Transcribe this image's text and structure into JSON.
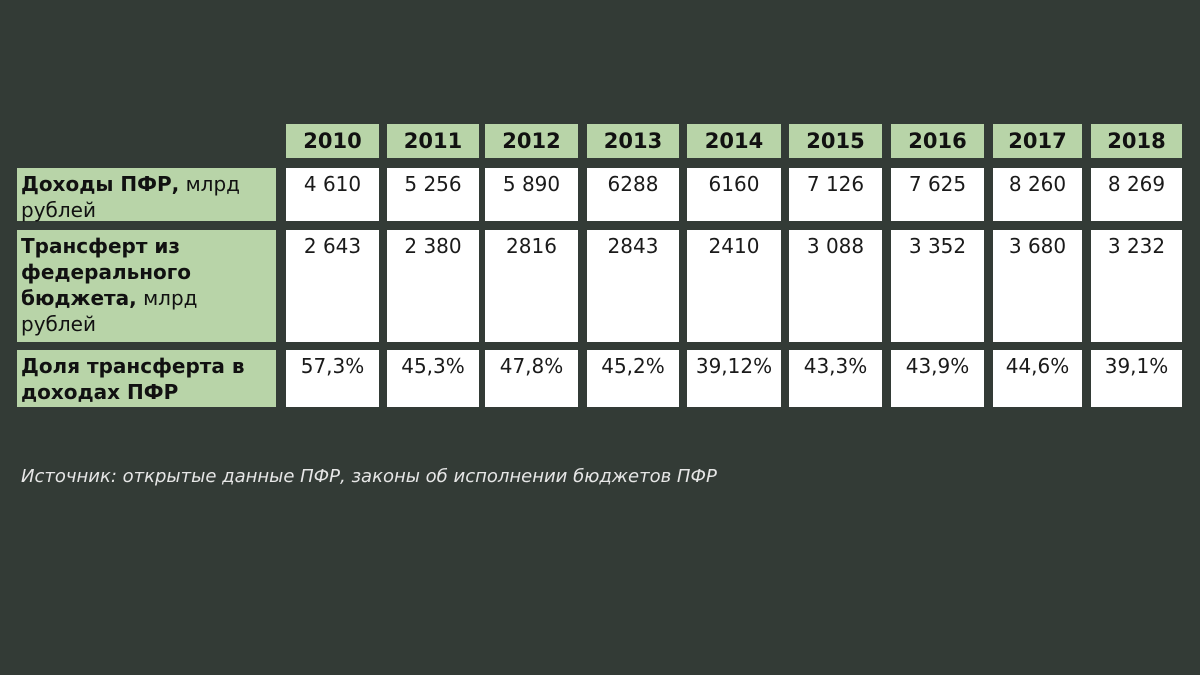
{
  "chart_data": {
    "type": "table",
    "columns": [
      "2010",
      "2011",
      "2012",
      "2013",
      "2014",
      "2015",
      "2016",
      "2017",
      "2018"
    ],
    "rows": [
      {
        "label_bold": "Доходы ПФР,",
        "label_normal": "млрд рублей",
        "values": [
          "4 610",
          "5 256",
          "5 890",
          "6288",
          "6160",
          "7 126",
          "7 625",
          "8 260",
          "8 269"
        ]
      },
      {
        "label_bold": "Трансферт из федерального бюджета,",
        "label_normal": "млрд рублей",
        "values": [
          "2 643",
          "2 380",
          "2816",
          "2843",
          "2410",
          "3 088",
          "3 352",
          "3 680",
          "3 232"
        ]
      },
      {
        "label_bold": "Доля трансферта в доходах ПФР",
        "label_normal": "",
        "values": [
          "57,3%",
          "45,3%",
          "47,8%",
          "45,2%",
          "39,12%",
          "43,3%",
          "43,9%",
          "44,6%",
          "39,1%"
        ]
      }
    ]
  },
  "source": "Источник: открытые данные ПФР, законы об исполнении бюджетов ПФР",
  "colors": {
    "background": "#333b36",
    "header": "#b8d4a8",
    "cell": "#ffffff"
  }
}
